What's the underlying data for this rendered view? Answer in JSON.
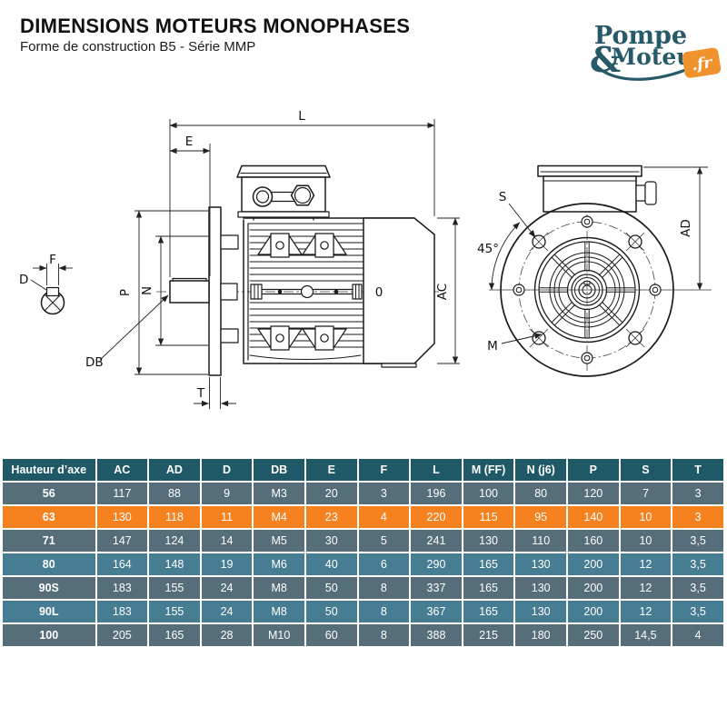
{
  "header": {
    "title": "DIMENSIONS MOTEURS MONOPHASES",
    "subtitle": "Forme de construction B5 - Série MMP"
  },
  "logo": {
    "word1": "Pompe",
    "ampersand": "&",
    "word2": "Moteur",
    "tld": ".fr",
    "colors": {
      "teal": "#275A68",
      "orange": "#F0932E"
    }
  },
  "drawing": {
    "side_view": {
      "dim_L": "L",
      "dim_E": "E",
      "dim_P": "P",
      "dim_N": "N",
      "dim_DB": "DB",
      "dim_D": "D",
      "dim_F": "F",
      "dim_T": "T",
      "dim_AC": "AC",
      "motor_mark": "0"
    },
    "front_view": {
      "dim_S": "S",
      "angle": "45°",
      "dim_M": "M",
      "dim_AD": "AD"
    }
  },
  "table": {
    "columns": [
      "Hauteur d’axe",
      "AC",
      "AD",
      "D",
      "DB",
      "E",
      "F",
      "L",
      "M (FF)",
      "N (j6)",
      "P",
      "S",
      "T"
    ],
    "highlighted_row": "63",
    "rows": [
      {
        "hauteur": "56",
        "variant": "dark",
        "values": [
          "117",
          "88",
          "9",
          "M3",
          "20",
          "3",
          "196",
          "100",
          "80",
          "120",
          "7",
          "3"
        ]
      },
      {
        "hauteur": "63",
        "variant": "highlight",
        "values": [
          "130",
          "118",
          "11",
          "M4",
          "23",
          "4",
          "220",
          "115",
          "95",
          "140",
          "10",
          "3"
        ]
      },
      {
        "hauteur": "71",
        "variant": "dark",
        "values": [
          "147",
          "124",
          "14",
          "M5",
          "30",
          "5",
          "241",
          "130",
          "110",
          "160",
          "10",
          "3,5"
        ]
      },
      {
        "hauteur": "80",
        "variant": "light",
        "values": [
          "164",
          "148",
          "19",
          "M6",
          "40",
          "6",
          "290",
          "165",
          "130",
          "200",
          "12",
          "3,5"
        ]
      },
      {
        "hauteur": "90S",
        "variant": "dark",
        "values": [
          "183",
          "155",
          "24",
          "M8",
          "50",
          "8",
          "337",
          "165",
          "130",
          "200",
          "12",
          "3,5"
        ]
      },
      {
        "hauteur": "90L",
        "variant": "light",
        "values": [
          "183",
          "155",
          "24",
          "M8",
          "50",
          "8",
          "367",
          "165",
          "130",
          "200",
          "12",
          "3,5"
        ]
      },
      {
        "hauteur": "100",
        "variant": "dark",
        "values": [
          "205",
          "165",
          "28",
          "M10",
          "60",
          "8",
          "388",
          "215",
          "180",
          "250",
          "14,5",
          "4"
        ]
      }
    ],
    "colors": {
      "header_bg": "#1F5968",
      "row_dark": "#566E79",
      "row_light": "#477D92",
      "row_highlight": "#F5821F",
      "cell_text": "#FFFFFF"
    }
  }
}
